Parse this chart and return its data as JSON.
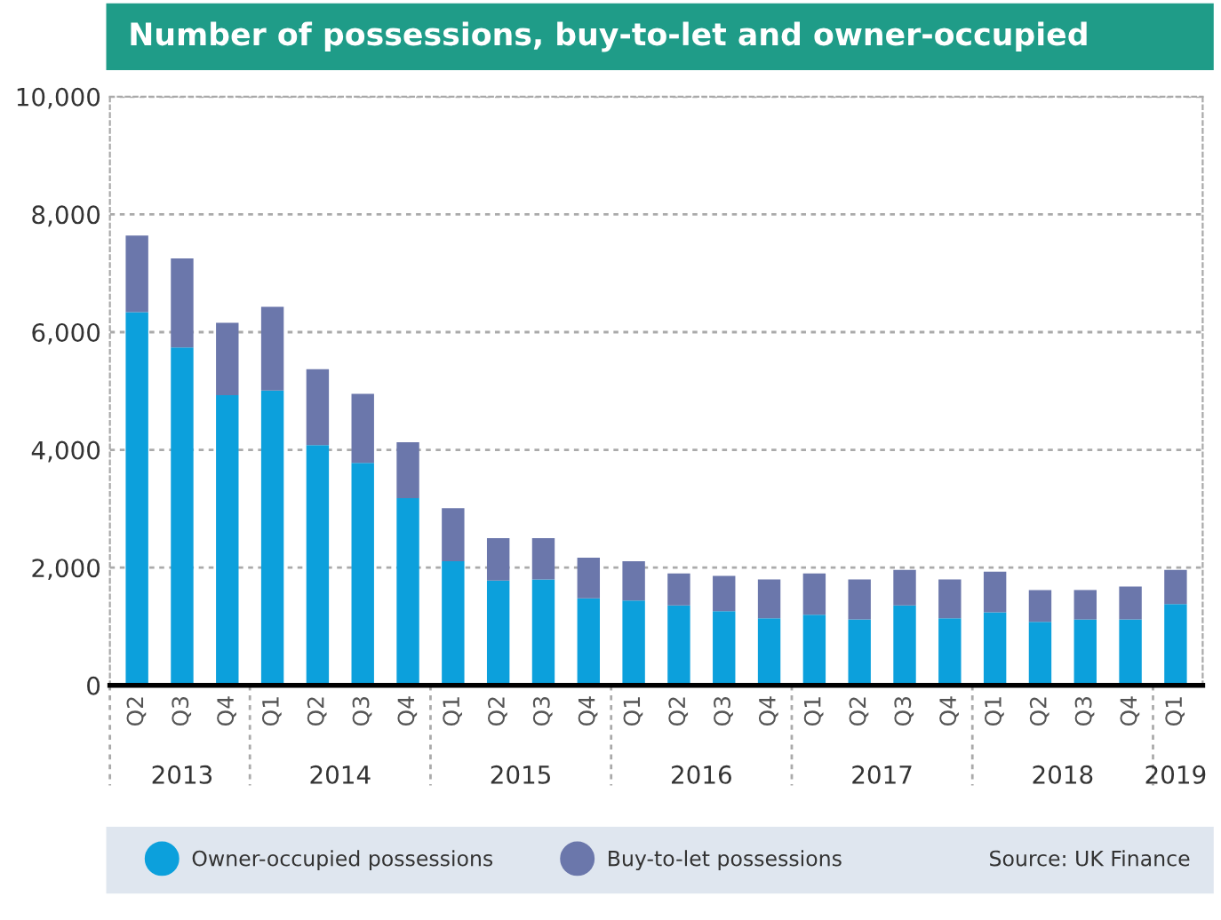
{
  "chart_data": {
    "type": "bar",
    "title": "Number of possessions, buy-to-let and owner-occupied",
    "categories": [
      "Q2",
      "Q3",
      "Q4",
      "Q1",
      "Q2",
      "Q3",
      "Q4",
      "Q1",
      "Q2",
      "Q3",
      "Q4",
      "Q1",
      "Q2",
      "Q3",
      "Q4",
      "Q1",
      "Q2",
      "Q3",
      "Q4",
      "Q1",
      "Q2",
      "Q3",
      "Q4",
      "Q1"
    ],
    "stacked": true,
    "series": [
      {
        "name": "Owner-occupied possessions",
        "color": "#0ca0dc",
        "values": [
          6340,
          5740,
          4930,
          5010,
          4080,
          3780,
          3180,
          2110,
          1780,
          1800,
          1480,
          1440,
          1360,
          1260,
          1140,
          1200,
          1120,
          1360,
          1140,
          1240,
          1080,
          1120,
          1120,
          1380
        ]
      },
      {
        "name": "Buy-to-let possessions",
        "color": "#6b77ab",
        "values": [
          1300,
          1510,
          1230,
          1420,
          1290,
          1170,
          950,
          900,
          720,
          700,
          690,
          670,
          540,
          600,
          660,
          700,
          680,
          600,
          660,
          690,
          540,
          500,
          560,
          580
        ]
      }
    ],
    "ylim": [
      0,
      10000
    ],
    "yticks": [
      {
        "value": 0,
        "label": "0"
      },
      {
        "value": 2000,
        "label": "2,000"
      },
      {
        "value": 4000,
        "label": "4,000"
      },
      {
        "value": 6000,
        "label": "6,000"
      },
      {
        "value": 8000,
        "label": "8,000"
      },
      {
        "value": 10000,
        "label": "10,000"
      }
    ],
    "grid": "y",
    "legend": "bottom",
    "annotations": [
      "2013",
      "2014",
      "2015",
      "2016",
      "2017",
      "2018",
      "2019",
      "Source: UK Finance"
    ]
  }
}
